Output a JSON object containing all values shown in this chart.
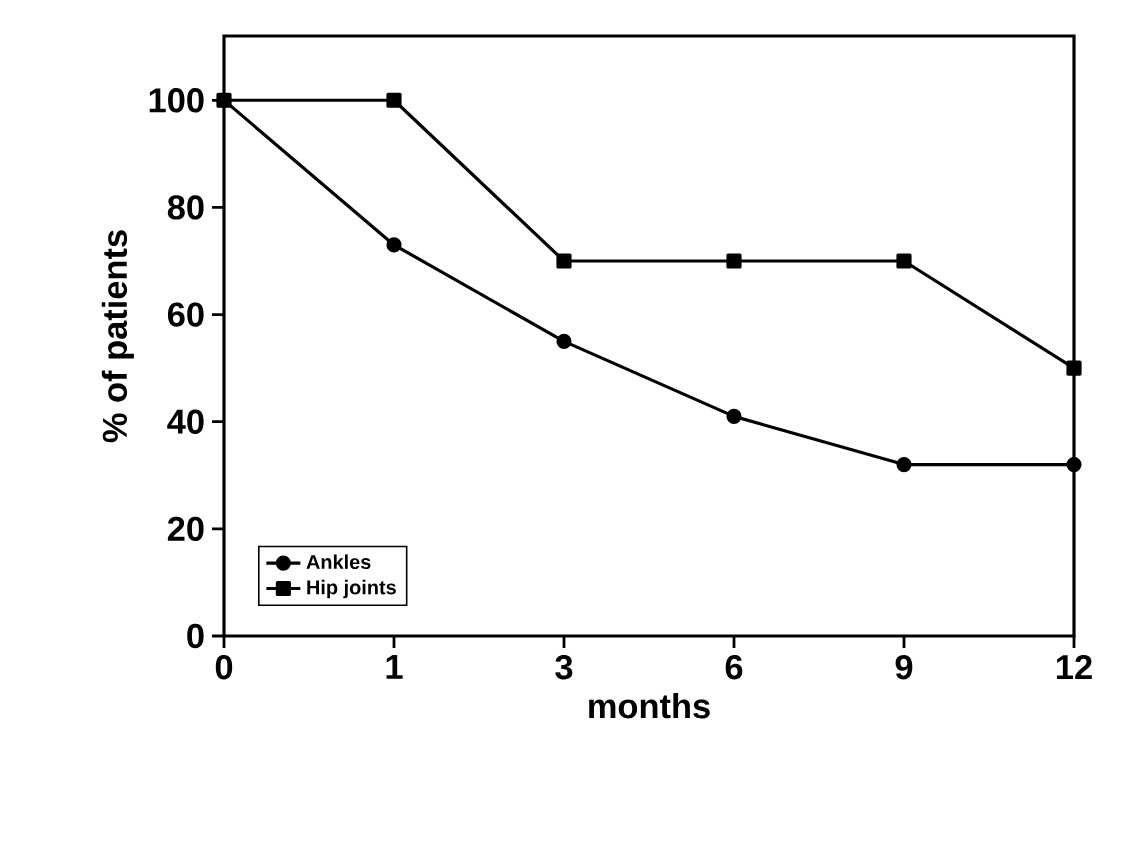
{
  "chart_data": {
    "type": "line",
    "xlabel": "months",
    "ylabel": "% of patients",
    "categories": [
      "0",
      "1",
      "3",
      "6",
      "9",
      "12"
    ],
    "ylim": [
      0,
      112
    ],
    "yticks": [
      0,
      20,
      40,
      60,
      80,
      100
    ],
    "grid": false,
    "legend": "bottom left",
    "series": [
      {
        "name": "Ankles",
        "color": "#000000",
        "marker": "circle",
        "values": [
          100,
          73,
          55,
          41,
          32,
          32
        ]
      },
      {
        "name": "Hip joints",
        "color": "#000000",
        "marker": "square",
        "values": [
          100,
          100,
          70,
          70,
          70,
          50
        ]
      }
    ]
  }
}
